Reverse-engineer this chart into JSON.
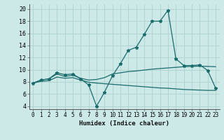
{
  "xlabel": "Humidex (Indice chaleur)",
  "bg_color": "#cce9e8",
  "grid_color": "#afd4d2",
  "line_color": "#1a6b6b",
  "xlim": [
    -0.5,
    23.5
  ],
  "ylim": [
    3.5,
    20.8
  ],
  "xticks": [
    0,
    1,
    2,
    3,
    4,
    5,
    6,
    7,
    8,
    9,
    10,
    11,
    12,
    13,
    14,
    15,
    16,
    17,
    18,
    19,
    20,
    21,
    22,
    23
  ],
  "yticks": [
    4,
    6,
    8,
    10,
    12,
    14,
    16,
    18,
    20
  ],
  "line1_x": [
    0,
    1,
    2,
    3,
    4,
    5,
    6,
    7,
    8,
    9,
    10,
    11,
    12,
    13,
    14,
    15,
    16,
    17,
    18,
    19,
    20,
    21,
    22,
    23
  ],
  "line1_y": [
    7.8,
    8.3,
    8.5,
    9.5,
    9.2,
    9.3,
    8.5,
    7.5,
    4.0,
    6.3,
    9.0,
    11.0,
    13.2,
    13.7,
    15.8,
    18.0,
    18.0,
    19.8,
    11.8,
    10.7,
    10.7,
    10.8,
    9.9,
    7.0
  ],
  "line2_x": [
    0,
    1,
    2,
    3,
    4,
    5,
    6,
    7,
    8,
    9,
    10,
    11,
    12,
    13,
    14,
    15,
    16,
    17,
    18,
    19,
    20,
    21,
    22,
    23
  ],
  "line2_y": [
    7.8,
    8.3,
    8.5,
    9.3,
    8.9,
    9.1,
    8.6,
    8.3,
    8.4,
    8.7,
    9.3,
    9.5,
    9.7,
    9.8,
    9.95,
    10.1,
    10.2,
    10.3,
    10.4,
    10.5,
    10.55,
    10.6,
    10.55,
    10.5
  ],
  "line3_x": [
    0,
    1,
    2,
    3,
    4,
    5,
    6,
    7,
    8,
    9,
    10,
    11,
    12,
    13,
    14,
    15,
    16,
    17,
    18,
    19,
    20,
    21,
    22,
    23
  ],
  "line3_y": [
    7.8,
    8.1,
    8.2,
    8.8,
    8.6,
    8.7,
    8.3,
    7.95,
    7.8,
    7.7,
    7.6,
    7.5,
    7.4,
    7.3,
    7.2,
    7.1,
    7.0,
    6.95,
    6.85,
    6.75,
    6.7,
    6.65,
    6.6,
    6.6
  ]
}
